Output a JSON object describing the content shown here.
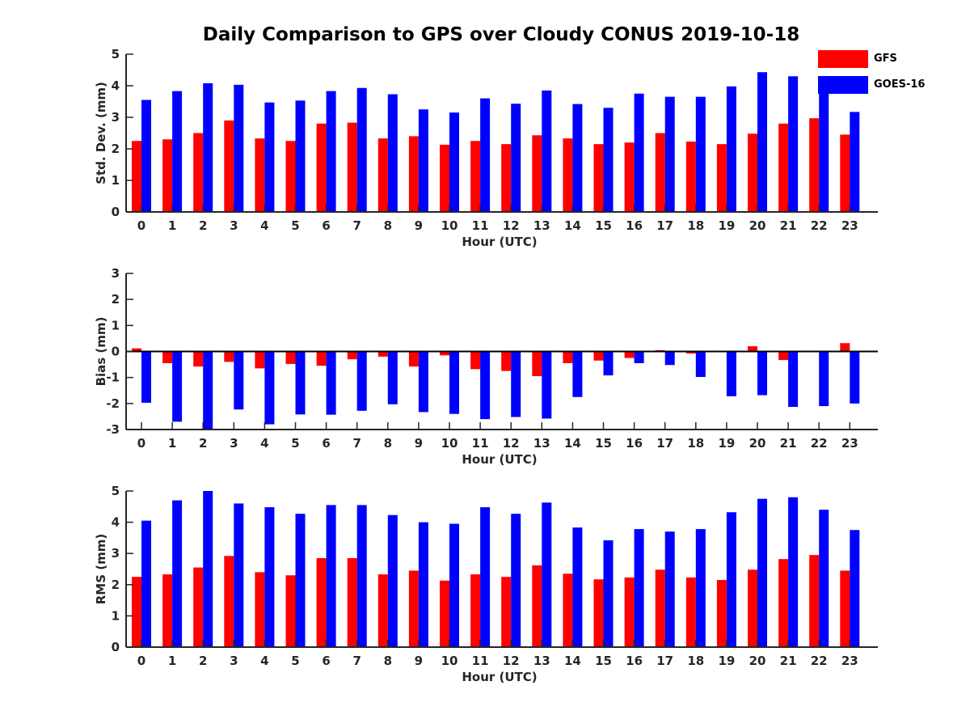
{
  "title": "Daily Comparison to GPS over Cloudy CONUS 2019-10-18",
  "legend": [
    {
      "name": "GFS",
      "color": "#ff0000"
    },
    {
      "name": "GOES-16",
      "color": "#0000ff"
    }
  ],
  "chart_data": [
    {
      "type": "bar",
      "id": "std",
      "xlabel": "Hour (UTC)",
      "ylabel": "Std. Dev. (mm)",
      "ylim": [
        0,
        5
      ],
      "yticks": [
        0,
        1,
        2,
        3,
        4,
        5
      ],
      "grid": false,
      "categories": [
        "0",
        "1",
        "2",
        "3",
        "4",
        "5",
        "6",
        "7",
        "8",
        "9",
        "10",
        "11",
        "12",
        "13",
        "14",
        "15",
        "16",
        "17",
        "18",
        "19",
        "20",
        "21",
        "22",
        "23"
      ],
      "series": [
        {
          "name": "GFS",
          "color": "#ff0000",
          "values": [
            2.25,
            2.3,
            2.5,
            2.9,
            2.33,
            2.25,
            2.8,
            2.83,
            2.33,
            2.4,
            2.13,
            2.25,
            2.15,
            2.43,
            2.33,
            2.15,
            2.2,
            2.5,
            2.23,
            2.15,
            2.48,
            2.8,
            2.97,
            2.45
          ]
        },
        {
          "name": "GOES-16",
          "color": "#0000ff",
          "values": [
            3.55,
            3.83,
            4.08,
            4.03,
            3.47,
            3.53,
            3.83,
            3.93,
            3.73,
            3.25,
            3.15,
            3.6,
            3.43,
            3.85,
            3.42,
            3.3,
            3.75,
            3.65,
            3.65,
            3.98,
            4.43,
            4.3,
            3.85,
            3.17
          ]
        }
      ]
    },
    {
      "type": "bar",
      "id": "bias",
      "xlabel": "Hour (UTC)",
      "ylabel": "Bias (mm)",
      "ylim": [
        -3,
        3
      ],
      "yticks": [
        -3,
        -2,
        -1,
        0,
        1,
        2,
        3
      ],
      "grid": false,
      "categories": [
        "0",
        "1",
        "2",
        "3",
        "4",
        "5",
        "6",
        "7",
        "8",
        "9",
        "10",
        "11",
        "12",
        "13",
        "14",
        "15",
        "16",
        "17",
        "18",
        "19",
        "20",
        "21",
        "22",
        "23"
      ],
      "series": [
        {
          "name": "GFS",
          "color": "#ff0000",
          "values": [
            0.12,
            -0.45,
            -0.58,
            -0.4,
            -0.65,
            -0.48,
            -0.55,
            -0.3,
            -0.2,
            -0.58,
            -0.15,
            -0.68,
            -0.75,
            -0.95,
            -0.45,
            -0.35,
            -0.25,
            0.05,
            -0.08,
            -0.02,
            0.2,
            -0.33,
            -0.02,
            0.32
          ]
        },
        {
          "name": "GOES-16",
          "color": "#0000ff",
          "values": [
            -1.97,
            -2.7,
            -3.0,
            -2.23,
            -2.8,
            -2.42,
            -2.43,
            -2.28,
            -2.03,
            -2.33,
            -2.4,
            -2.6,
            -2.52,
            -2.58,
            -1.75,
            -0.92,
            -0.45,
            -0.52,
            -0.98,
            -1.72,
            -1.68,
            -2.13,
            -2.1,
            -2.0
          ]
        }
      ]
    },
    {
      "type": "bar",
      "id": "rms",
      "xlabel": "Hour (UTC)",
      "ylabel": "RMS (mm)",
      "ylim": [
        0,
        5
      ],
      "yticks": [
        0,
        1,
        2,
        3,
        4,
        5
      ],
      "grid": false,
      "categories": [
        "0",
        "1",
        "2",
        "3",
        "4",
        "5",
        "6",
        "7",
        "8",
        "9",
        "10",
        "11",
        "12",
        "13",
        "14",
        "15",
        "16",
        "17",
        "18",
        "19",
        "20",
        "21",
        "22",
        "23"
      ],
      "series": [
        {
          "name": "GFS",
          "color": "#ff0000",
          "values": [
            2.25,
            2.33,
            2.55,
            2.92,
            2.4,
            2.3,
            2.85,
            2.85,
            2.33,
            2.45,
            2.13,
            2.33,
            2.25,
            2.62,
            2.35,
            2.17,
            2.23,
            2.48,
            2.23,
            2.15,
            2.48,
            2.82,
            2.95,
            2.45
          ]
        },
        {
          "name": "GOES-16",
          "color": "#0000ff",
          "values": [
            4.05,
            4.7,
            5.0,
            4.6,
            4.48,
            4.27,
            4.55,
            4.55,
            4.23,
            4.0,
            3.95,
            4.48,
            4.27,
            4.63,
            3.83,
            3.42,
            3.78,
            3.7,
            3.78,
            4.32,
            4.75,
            4.8,
            4.4,
            3.75
          ]
        }
      ]
    }
  ]
}
